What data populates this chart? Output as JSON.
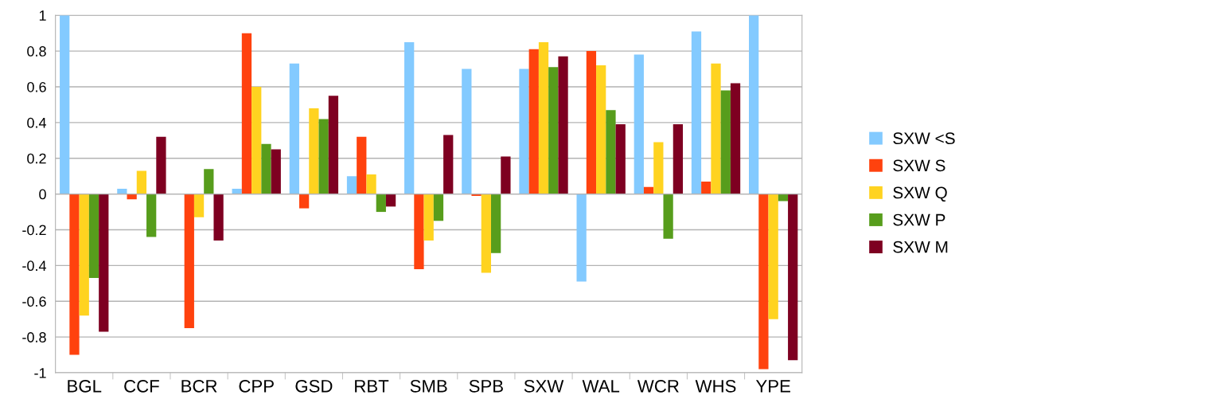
{
  "chart_data": {
    "type": "bar",
    "categories": [
      "BGL",
      "CCF",
      "BCR",
      "CPP",
      "GSD",
      "RBT",
      "SMB",
      "SPB",
      "SXW",
      "WAL",
      "WCR",
      "WHS",
      "YPE"
    ],
    "series": [
      {
        "name": "SXW <S",
        "color": "#83caff",
        "values": [
          1,
          0.03,
          0,
          0.03,
          0.73,
          0.1,
          0.85,
          0.7,
          0.7,
          -0.49,
          0.78,
          0.91,
          1
        ]
      },
      {
        "name": "SXW S",
        "color": "#ff420e",
        "values": [
          -0.9,
          -0.03,
          -0.75,
          0.9,
          -0.08,
          0.32,
          -0.42,
          -0.01,
          0.81,
          0.8,
          0.04,
          0.07,
          -0.98
        ]
      },
      {
        "name": "SXW Q",
        "color": "#ffd320",
        "values": [
          -0.68,
          0.13,
          -0.13,
          0.6,
          0.48,
          0.11,
          -0.26,
          -0.44,
          0.85,
          0.72,
          0.29,
          0.73,
          -0.7
        ]
      },
      {
        "name": "SXW P",
        "color": "#579d1c",
        "values": [
          -0.47,
          -0.24,
          0.14,
          0.28,
          0.42,
          -0.1,
          -0.15,
          -0.33,
          0.71,
          0.47,
          -0.25,
          0.58,
          -0.04
        ]
      },
      {
        "name": "SXW M",
        "color": "#7e0021",
        "values": [
          -0.77,
          0.32,
          -0.26,
          0.25,
          0.55,
          -0.07,
          0.33,
          0.21,
          0.77,
          0.39,
          0.39,
          0.62,
          -0.93
        ]
      }
    ],
    "ylim": [
      -1,
      1
    ],
    "yticks": [
      -1,
      -0.8,
      -0.6,
      -0.4,
      -0.2,
      0,
      0.2,
      0.4,
      0.6,
      0.8,
      1
    ],
    "grid": "y",
    "legend": "right"
  }
}
